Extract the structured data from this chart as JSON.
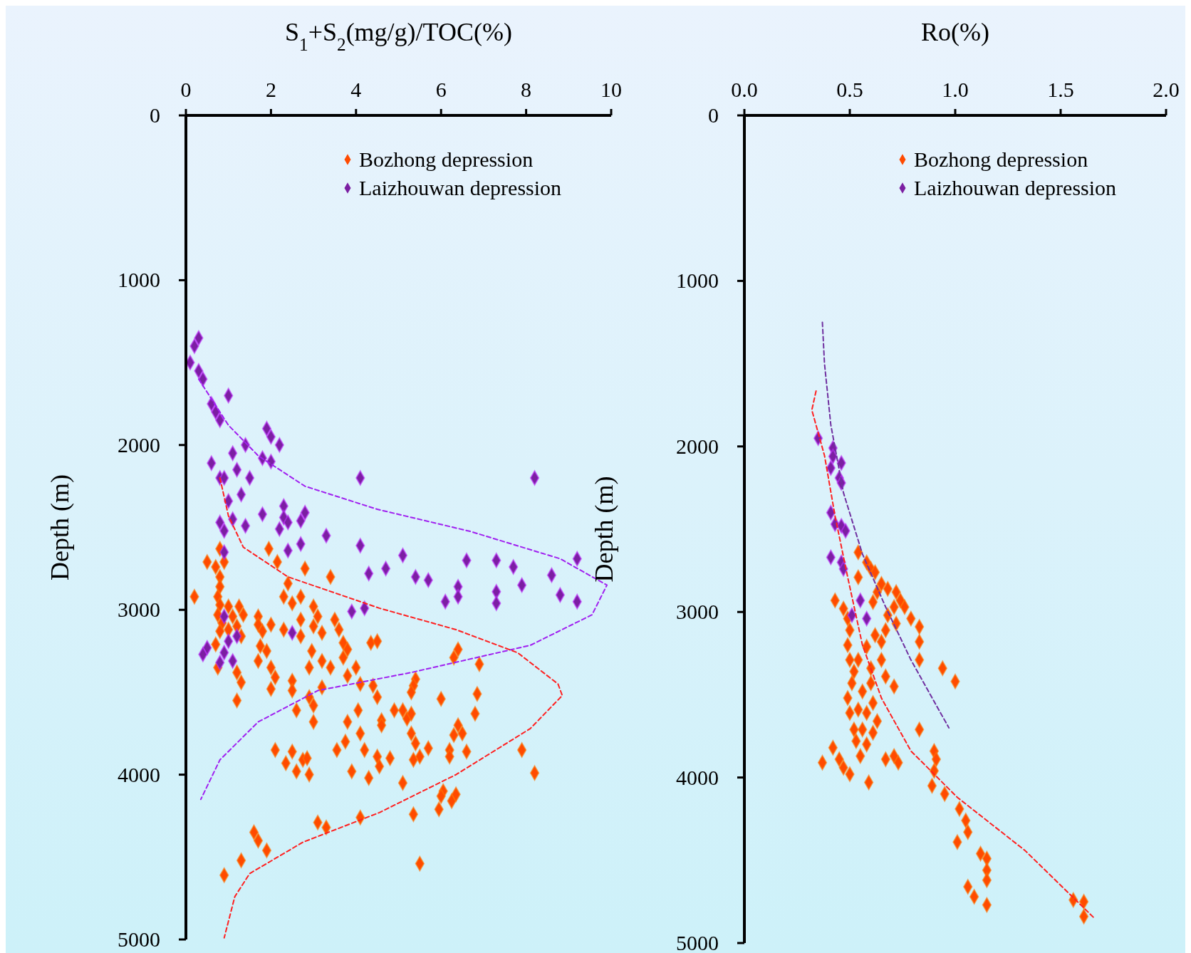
{
  "chart_data": [
    {
      "type": "scatter",
      "xlabel": "S$_{1}$+S$_{2}$(mg/g)/TOC(%)",
      "ylabel": "Depth (m)",
      "xlim": [
        0,
        10
      ],
      "xticks": [
        0,
        2,
        4,
        6,
        8,
        10
      ],
      "ylim": [
        5000,
        0
      ],
      "yticks": [
        0,
        1000,
        2000,
        3000,
        4000,
        5000
      ],
      "legend": "top right",
      "marker": "diamond",
      "grid": false,
      "series": [
        {
          "name": "Bozhong depression",
          "color": "#ff4a00",
          "x": [
            0.2,
            0.5,
            0.7,
            0.8,
            0.8,
            0.75,
            0.8,
            0.75,
            0.85,
            0.8,
            0.7,
            1.0,
            1.0,
            1.1,
            1.2,
            1.25,
            1.35,
            1.3,
            0.9,
            0.8,
            1.95,
            2.15,
            2.8,
            3.4,
            0.75,
            1.2,
            1.3,
            1.2,
            1.7,
            1.7,
            1.8,
            2.0,
            1.75,
            1.9,
            1.7,
            2.0,
            2.1,
            2.0,
            2.3,
            2.3,
            2.5,
            2.7,
            2.4,
            2.7,
            3.0,
            3.1,
            3.0,
            3.2,
            2.7,
            2.96,
            3.2,
            3.4,
            2.9,
            2.5,
            2.5,
            2.6,
            2.9,
            3.0,
            3.0,
            3.2,
            3.5,
            3.6,
            3.7,
            3.8,
            3.7,
            4.0,
            4.1,
            3.8,
            4.35,
            4.5,
            4.4,
            4.5,
            4.9,
            5.1,
            5.2,
            5.3,
            4.6,
            4.6,
            5.4,
            5.35,
            5.3,
            6.0,
            6.4,
            6.3,
            6.9,
            6.85,
            6.8,
            6.4,
            6.5,
            6.3,
            6.6,
            6.2,
            6.2,
            5.7,
            5.3,
            5.4,
            5.5,
            5.35,
            4.05,
            3.8,
            4.1,
            3.75,
            3.55,
            4.2,
            4.5,
            4.55,
            4.8,
            4.3,
            3.9,
            2.1,
            2.5,
            2.35,
            2.6,
            2.75,
            2.85,
            2.9,
            7.9,
            8.2,
            5.1,
            6.05,
            6.0,
            6.25,
            6.35,
            5.95,
            5.35,
            4.1,
            3.1,
            3.3,
            1.6,
            1.7,
            1.9,
            1.3,
            0.9,
            5.5
          ],
          "values": [
            2920,
            2710,
            2740,
            2800,
            2860,
            2920,
            2970,
            3030,
            3080,
            3130,
            3210,
            3120,
            2980,
            3040,
            3100,
            2980,
            3030,
            3160,
            2710,
            2630,
            2630,
            2710,
            2750,
            2800,
            3350,
            3380,
            3440,
            3550,
            3040,
            3090,
            3130,
            3090,
            3220,
            3250,
            3310,
            3350,
            3410,
            3480,
            3120,
            2920,
            2960,
            2920,
            2840,
            3060,
            2980,
            3040,
            3100,
            3140,
            3160,
            3250,
            3310,
            3350,
            3350,
            3430,
            3490,
            3610,
            3530,
            3580,
            3680,
            3470,
            3060,
            3120,
            3200,
            3240,
            3290,
            3350,
            3450,
            3400,
            3200,
            3190,
            3460,
            3530,
            3610,
            3610,
            3660,
            3630,
            3670,
            3700,
            3420,
            3460,
            3500,
            3540,
            3240,
            3290,
            3330,
            3510,
            3630,
            3700,
            3750,
            3760,
            3860,
            3850,
            3890,
            3840,
            3750,
            3810,
            3890,
            3910,
            3610,
            3680,
            3750,
            3800,
            3850,
            3850,
            3890,
            3950,
            3900,
            4020,
            3980,
            3850,
            3860,
            3930,
            3980,
            3910,
            3900,
            4000,
            3850,
            3990,
            4050,
            4100,
            4130,
            4160,
            4120,
            4210,
            4240,
            4260,
            4290,
            4320,
            4350,
            4400,
            4460,
            4520,
            4610,
            4540
          ]
        },
        {
          "name": "Laizhouwan depression",
          "color": "#7b1fa2",
          "x": [
            0.3,
            0.2,
            0.1,
            0.3,
            0.4,
            1.0,
            0.6,
            0.7,
            0.8,
            1.9,
            2.0,
            2.2,
            1.4,
            1.1,
            1.8,
            2.0,
            0.6,
            1.2,
            0.8,
            0.9,
            4.1,
            8.2,
            1.5,
            1.0,
            1.3,
            0.8,
            1.8,
            2.3,
            2.8,
            2.3,
            2.4,
            2.2,
            2.7,
            1.1,
            0.9,
            1.4,
            3.3,
            2.7,
            4.1,
            0.9,
            2.4,
            5.1,
            6.6,
            7.3,
            7.7,
            4.7,
            4.3,
            5.4,
            5.7,
            8.6,
            9.2,
            6.4,
            7.3,
            7.9,
            6.4,
            6.1,
            7.3,
            8.8,
            9.2,
            4.2,
            3.9,
            0.9,
            0.5,
            0.4,
            1.0,
            0.9,
            0.8,
            1.1,
            2.5,
            1.2
          ],
          "values": [
            1350,
            1400,
            1500,
            1550,
            1600,
            1700,
            1750,
            1800,
            1850,
            1900,
            1950,
            2000,
            2000,
            2050,
            2080,
            2100,
            2110,
            2150,
            2200,
            2200,
            2200,
            2200,
            2200,
            2340,
            2300,
            2470,
            2420,
            2370,
            2410,
            2440,
            2470,
            2510,
            2460,
            2450,
            2520,
            2490,
            2550,
            2600,
            2610,
            2650,
            2640,
            2670,
            2700,
            2700,
            2740,
            2750,
            2780,
            2800,
            2820,
            2790,
            2690,
            2860,
            2890,
            2850,
            2920,
            2950,
            2960,
            2910,
            2950,
            2990,
            3010,
            3040,
            3230,
            3270,
            3190,
            3260,
            3320,
            3310,
            3140,
            3160
          ]
        },
        {
          "type": "line",
          "color": "#a020f0",
          "line_style": "dashed",
          "marker": "none",
          "x": [
            0.3,
            1.0,
            1.7,
            2.8,
            4.5,
            6.7,
            8.8,
            9.9,
            9.55,
            8.1,
            5.3,
            3.1,
            1.7,
            0.8,
            0.35
          ],
          "values": [
            1600,
            1880,
            2065,
            2250,
            2390,
            2525,
            2690,
            2850,
            3030,
            3215,
            3380,
            3490,
            3680,
            3910,
            4150
          ]
        },
        {
          "type": "line",
          "color": "#ff2020",
          "line_style": "dashed",
          "marker": "none",
          "x": [
            0.8,
            1.0,
            1.35,
            2.4,
            4.55,
            6.35,
            7.8,
            8.75,
            8.85,
            8.1,
            6.35,
            4.55,
            2.75,
            1.5,
            1.15,
            0.9
          ],
          "values": [
            2200,
            2430,
            2620,
            2800,
            2990,
            3120,
            3260,
            3450,
            3520,
            3720,
            4000,
            4230,
            4410,
            4600,
            4740,
            4990
          ]
        }
      ]
    },
    {
      "type": "scatter",
      "xlabel": "Ro(%)",
      "ylabel": "Depth (m)",
      "xlim": [
        0,
        2
      ],
      "xticks": [
        {
          "value": 0,
          "label": "0.0"
        },
        {
          "value": 0.5,
          "label": "0.5"
        },
        {
          "value": 1,
          "label": "1.0"
        },
        {
          "value": 1.5,
          "label": "1.5"
        },
        {
          "value": 2,
          "label": "2.0"
        }
      ],
      "ylim": [
        5000,
        0
      ],
      "yticks": [
        0,
        1000,
        2000,
        3000,
        4000,
        5000
      ],
      "legend": "top right",
      "marker": "diamond",
      "grid": false,
      "series": [
        {
          "name": "Bozhong depression",
          "color": "#ff4a00",
          "x": [
            0.54,
            0.58,
            0.6,
            0.62,
            0.54,
            0.65,
            0.68,
            0.72,
            0.74,
            0.76,
            0.71,
            0.68,
            0.72,
            0.79,
            0.83,
            0.83,
            0.83,
            0.65,
            0.67,
            0.61,
            0.63,
            0.43,
            0.47,
            0.49,
            0.5,
            0.49,
            0.5,
            0.52,
            0.51,
            0.49,
            0.5,
            0.52,
            0.53,
            0.55,
            0.58,
            0.61,
            0.58,
            0.56,
            0.6,
            0.6,
            0.65,
            0.67,
            0.71,
            0.61,
            0.63,
            0.56,
            0.54,
            0.58,
            0.54,
            0.62,
            0.42,
            0.37,
            0.45,
            0.47,
            0.5,
            0.59,
            0.67,
            0.71,
            0.9,
            0.91,
            0.9,
            0.89,
            0.95,
            1.02,
            1.05,
            1.06,
            1.01,
            1.12,
            1.15,
            1.15,
            1.15,
            1.06,
            1.09,
            1.15,
            1.56,
            1.61,
            1.61,
            0.94,
            1.0,
            0.83,
            0.73
          ],
          "values": [
            2640,
            2700,
            2740,
            2760,
            2790,
            2830,
            2860,
            2880,
            2930,
            2970,
            2970,
            3020,
            3070,
            3040,
            3090,
            3180,
            3290,
            3180,
            3110,
            2940,
            2880,
            2930,
            2980,
            3040,
            3110,
            3200,
            3290,
            3360,
            3430,
            3520,
            3610,
            3710,
            3780,
            3870,
            3800,
            3730,
            3610,
            3480,
            3430,
            3340,
            3290,
            3390,
            3450,
            3550,
            3660,
            3710,
            3590,
            3210,
            3290,
            3140,
            3820,
            3910,
            3890,
            3940,
            3980,
            4030,
            3890,
            3870,
            3840,
            3890,
            3960,
            4050,
            4100,
            4190,
            4260,
            4330,
            4390,
            4460,
            4490,
            4560,
            4620,
            4660,
            4720,
            4770,
            4740,
            4750,
            4840,
            3340,
            3420,
            3710,
            3910
          ]
        },
        {
          "name": "Laizhouwan depression",
          "color": "#7b1fa2",
          "x": [
            0.35,
            0.42,
            0.42,
            0.46,
            0.41,
            0.45,
            0.46,
            0.41,
            0.43,
            0.46,
            0.48,
            0.41,
            0.46,
            0.47,
            0.55,
            0.51,
            0.58
          ],
          "values": [
            1950,
            2010,
            2060,
            2100,
            2130,
            2190,
            2220,
            2400,
            2470,
            2480,
            2510,
            2670,
            2700,
            2740,
            2930,
            3020,
            3040
          ]
        },
        {
          "type": "line",
          "color": "#ff2020",
          "line_style": "dashed",
          "marker": "none",
          "x": [
            0.34,
            0.32,
            0.38,
            0.43,
            0.49,
            0.56,
            0.65,
            0.79,
            1.01,
            1.33,
            1.66
          ],
          "values": [
            1665,
            1780,
            2055,
            2420,
            2790,
            3200,
            3520,
            3840,
            4120,
            4440,
            4850
          ]
        },
        {
          "type": "line",
          "color": "#7030a0",
          "line_style": "dashed",
          "marker": "none",
          "x": [
            0.37,
            0.38,
            0.41,
            0.47,
            0.56,
            0.67,
            0.79,
            0.97
          ],
          "values": [
            1250,
            1500,
            1870,
            2280,
            2650,
            2970,
            3290,
            3700
          ]
        }
      ]
    }
  ]
}
